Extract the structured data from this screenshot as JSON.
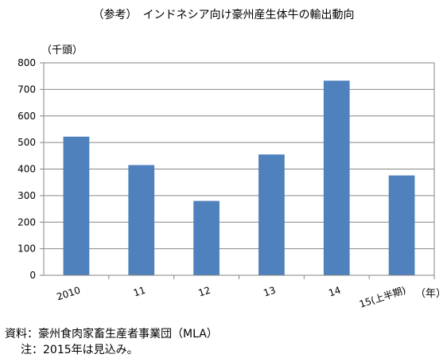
{
  "chart_data": {
    "type": "bar",
    "title": "（参考）　インドネシア向け豪州産生体牛の輸出動向",
    "ylabel": "（千頭）",
    "xlabel": "（年）",
    "categories": [
      "2010",
      "11",
      "12",
      "13",
      "14",
      "15(上半期)"
    ],
    "values": [
      522,
      415,
      280,
      455,
      733,
      376
    ],
    "ylim": [
      0,
      800
    ],
    "yticks": [
      "0",
      "100",
      "200",
      "300",
      "400",
      "500",
      "600",
      "700",
      "800"
    ],
    "grid": true,
    "legend": "none",
    "bar_color": "#4f81bd"
  },
  "source": {
    "line1": "資料：豪州食肉家畜生産者事業団（MLA）",
    "line2": "注：2015年は見込み。"
  }
}
